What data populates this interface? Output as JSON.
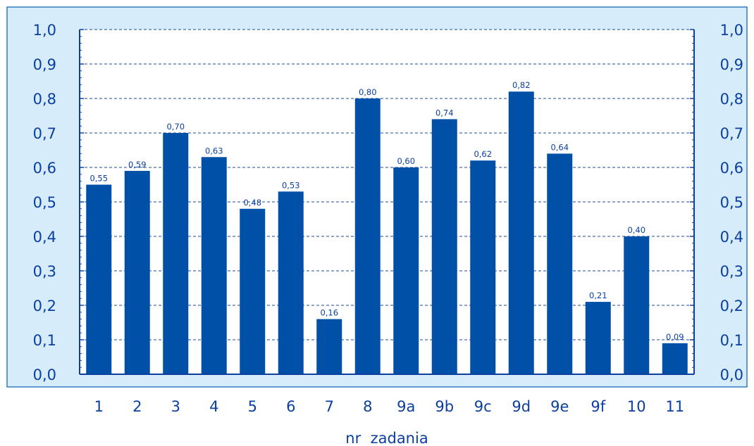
{
  "chart_data": {
    "type": "bar",
    "categories": [
      "1",
      "2",
      "3",
      "4",
      "5",
      "6",
      "7",
      "8",
      "9a",
      "9b",
      "9c",
      "9d",
      "9e",
      "9f",
      "10",
      "11"
    ],
    "values": [
      0.55,
      0.59,
      0.7,
      0.63,
      0.48,
      0.53,
      0.16,
      0.8,
      0.6,
      0.74,
      0.62,
      0.82,
      0.64,
      0.21,
      0.4,
      0.09
    ],
    "value_labels": [
      "0,55",
      "0,59",
      "0,70",
      "0,63",
      "0,48",
      "0,53",
      "0,16",
      "0,80",
      "0,60",
      "0,74",
      "0,62",
      "0,82",
      "0,64",
      "0,21",
      "0,40",
      "0,09"
    ],
    "y_ticks": [
      "0,0",
      "0,1",
      "0,2",
      "0,3",
      "0,4",
      "0,5",
      "0,6",
      "0,7",
      "0,8",
      "0,9",
      "1,0"
    ],
    "ylim": [
      0,
      1.0
    ],
    "xlabel": "nr  zadania",
    "ylabel": "",
    "title": "",
    "grid": true,
    "y_axis_both_sides": true,
    "colors": {
      "bar": "#0050A8",
      "panel_background": "#D6ECFA",
      "panel_border": "#2F7FC0",
      "plot_background": "#FFFFFF",
      "axis": "#0A3FA0",
      "text": "#0A3FA0",
      "grid": "#1F4A9A"
    }
  }
}
